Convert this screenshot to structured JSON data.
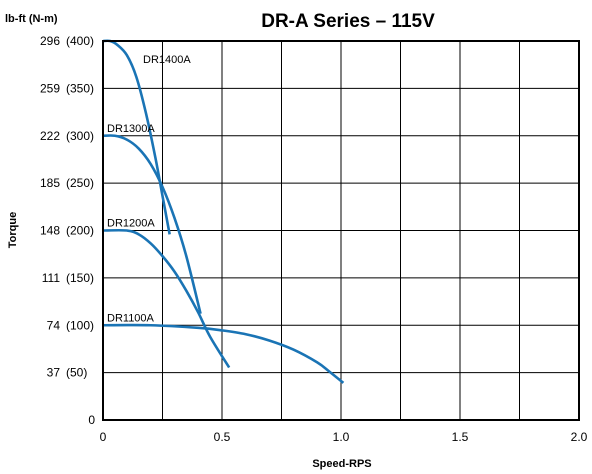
{
  "chart_data": {
    "type": "line",
    "title": "DR-A Series – 115V",
    "unit_label": "lb-ft  (N-m)",
    "xlabel": "Speed-RPS",
    "ylabel": "Torque",
    "xlim": [
      0,
      2.0
    ],
    "ylim": [
      0,
      296
    ],
    "grid": true,
    "x_ticks": [
      {
        "value": 0,
        "label": "0"
      },
      {
        "value": 0.5,
        "label": "0.5"
      },
      {
        "value": 1.0,
        "label": "1.0"
      },
      {
        "value": 1.5,
        "label": "1.5"
      },
      {
        "value": 2.0,
        "label": "2.0"
      }
    ],
    "x_grid": [
      0.25,
      0.5,
      0.75,
      1.0,
      1.25,
      1.5,
      1.75
    ],
    "y_ticks": [
      {
        "value": 0,
        "lbft": "0",
        "nm": ""
      },
      {
        "value": 37,
        "lbft": "37",
        "nm": "(50)"
      },
      {
        "value": 74,
        "lbft": "74",
        "nm": "(100)"
      },
      {
        "value": 111,
        "lbft": "111",
        "nm": "(150)"
      },
      {
        "value": 148,
        "lbft": "148",
        "nm": "(200)"
      },
      {
        "value": 185,
        "lbft": "185",
        "nm": "(250)"
      },
      {
        "value": 222,
        "lbft": "222",
        "nm": "(300)"
      },
      {
        "value": 259,
        "lbft": "259",
        "nm": "(350)"
      },
      {
        "value": 296,
        "lbft": "296",
        "nm": "(400)"
      }
    ],
    "series_color": "#1a74b5",
    "series": [
      {
        "name": "DR1400A",
        "x": [
          0,
          0.03,
          0.06,
          0.1,
          0.14,
          0.18,
          0.22,
          0.25,
          0.28
        ],
        "y": [
          296,
          296,
          293,
          285,
          268,
          240,
          205,
          175,
          145
        ]
      },
      {
        "name": "DR1300A",
        "x": [
          0,
          0.05,
          0.1,
          0.15,
          0.2,
          0.25,
          0.3,
          0.35,
          0.41
        ],
        "y": [
          222,
          222,
          219,
          212,
          200,
          182,
          158,
          128,
          83
        ]
      },
      {
        "name": "DR1200A",
        "x": [
          0,
          0.1,
          0.15,
          0.2,
          0.25,
          0.3,
          0.35,
          0.4,
          0.45,
          0.53
        ],
        "y": [
          148,
          148,
          145,
          138,
          128,
          116,
          101,
          84,
          65,
          41
        ]
      },
      {
        "name": "DR1100A",
        "x": [
          0,
          0.2,
          0.4,
          0.5,
          0.6,
          0.7,
          0.8,
          0.9,
          0.95,
          1.01
        ],
        "y": [
          74,
          74,
          72,
          70,
          67,
          62,
          55,
          45,
          38,
          29
        ]
      }
    ]
  }
}
